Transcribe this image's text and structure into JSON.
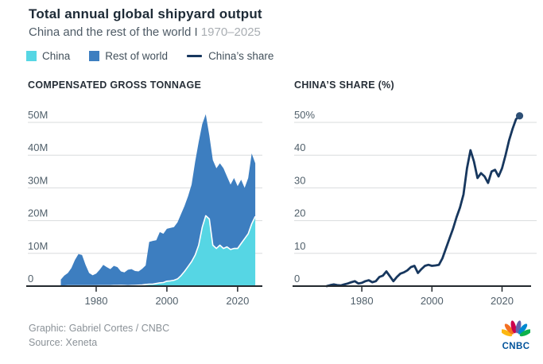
{
  "header": {
    "title": "Total annual global shipyard output",
    "subtitle": "China and the rest of the world I",
    "subtitle_range": "1970–2025"
  },
  "legend": {
    "china": "China",
    "rest_of_world": "Rest of world",
    "china_share": "China’s share"
  },
  "colors": {
    "china": "#56d6e4",
    "rest_of_world": "#3d7ec0",
    "share_line": "#17375e",
    "share_dot": "#2e5076",
    "grid": "#d9dcde",
    "axis": "#23292e",
    "axis_label": "#51606b",
    "cnbc_blue": "#00539b",
    "peacock": [
      "#fcb711",
      "#f37021",
      "#cc004c",
      "#6460aa",
      "#0089d0",
      "#0db14b"
    ]
  },
  "chart_data": [
    {
      "type": "area",
      "stacked": true,
      "title": "COMPENSATED GROSS TONNAGE",
      "unit": "million compensated gross tons",
      "ylim": [
        0,
        50
      ],
      "ytick_step": 10,
      "ytick_labels": [
        "0",
        "10M",
        "20M",
        "30M",
        "40M",
        "50M"
      ],
      "xticks": [
        1980,
        2000,
        2020
      ],
      "grid": true,
      "x": [
        1970,
        1971,
        1972,
        1973,
        1974,
        1975,
        1976,
        1977,
        1978,
        1979,
        1980,
        1981,
        1982,
        1983,
        1984,
        1985,
        1986,
        1987,
        1988,
        1989,
        1990,
        1991,
        1992,
        1993,
        1994,
        1995,
        1996,
        1997,
        1998,
        1999,
        2000,
        2001,
        2002,
        2003,
        2004,
        2005,
        2006,
        2007,
        2008,
        2009,
        2010,
        2011,
        2012,
        2013,
        2014,
        2015,
        2016,
        2017,
        2018,
        2019,
        2020,
        2021,
        2022,
        2023,
        2024,
        2025
      ],
      "series": [
        {
          "name": "China",
          "color": "#56d6e4",
          "values": [
            0.05,
            0.05,
            0.1,
            0.1,
            0.1,
            0.1,
            0.1,
            0.1,
            0.1,
            0.1,
            0.1,
            0.15,
            0.15,
            0.15,
            0.15,
            0.2,
            0.2,
            0.25,
            0.2,
            0.15,
            0.2,
            0.25,
            0.3,
            0.35,
            0.5,
            0.6,
            0.6,
            0.8,
            1.0,
            1.1,
            1.5,
            1.6,
            1.8,
            2.2,
            3.2,
            4.5,
            6.0,
            7.5,
            9.5,
            12.5,
            18.0,
            21.5,
            20.5,
            12.5,
            11.5,
            12.5,
            11.5,
            12.0,
            11.2,
            11.5,
            11.5,
            13.0,
            14.5,
            16.0,
            19.0,
            21.3
          ]
        },
        {
          "name": "Rest of world",
          "color": "#3d7ec0",
          "values": [
            1.95,
            3.15,
            3.9,
            5.4,
            7.9,
            9.7,
            9.4,
            6.4,
            3.9,
            3.2,
            3.7,
            4.85,
            6.35,
            5.65,
            5.05,
            6.0,
            5.6,
            4.25,
            4.0,
            4.85,
            5.0,
            4.35,
            4.2,
            4.95,
            5.8,
            12.9,
            13.2,
            13.2,
            15.5,
            14.9,
            16.0,
            16.2,
            16.2,
            17.3,
            18.8,
            20.0,
            21.5,
            23.5,
            28.5,
            31.5,
            31.5,
            31.0,
            25.5,
            26.0,
            24.5,
            25.0,
            24.5,
            21.5,
            19.8,
            21.5,
            19.0,
            19.5,
            15.5,
            17.0,
            21.5,
            16.2
          ]
        }
      ]
    },
    {
      "type": "line",
      "title": "CHINA’S SHARE (%)",
      "unit": "percent",
      "ylim": [
        0,
        50
      ],
      "ytick_step": 10,
      "ytick_labels": [
        "0",
        "10",
        "20",
        "30",
        "40",
        "50%"
      ],
      "xticks": [
        1980,
        2000,
        2020
      ],
      "grid": true,
      "end_dot": true,
      "x": [
        1970,
        1971,
        1972,
        1973,
        1974,
        1975,
        1976,
        1977,
        1978,
        1979,
        1980,
        1981,
        1982,
        1983,
        1984,
        1985,
        1986,
        1987,
        1988,
        1989,
        1990,
        1991,
        1992,
        1993,
        1994,
        1995,
        1996,
        1997,
        1998,
        1999,
        2000,
        2001,
        2002,
        2003,
        2004,
        2005,
        2006,
        2007,
        2008,
        2009,
        2010,
        2011,
        2012,
        2013,
        2014,
        2015,
        2016,
        2017,
        2018,
        2019,
        2020,
        2021,
        2022,
        2023,
        2024,
        2025
      ],
      "series": [
        {
          "name": "China’s share",
          "color": "#17375e",
          "values": [
            0,
            0.3,
            0.5,
            0.3,
            0.2,
            0.5,
            0.8,
            1.2,
            1.5,
            0.8,
            1.0,
            1.5,
            1.8,
            1.2,
            1.5,
            2.8,
            3.2,
            4.5,
            3.0,
            1.5,
            2.8,
            3.8,
            4.2,
            4.8,
            5.8,
            6.2,
            4.0,
            5.2,
            6.2,
            6.5,
            6.2,
            6.3,
            6.5,
            8.5,
            11.5,
            14.5,
            17.5,
            21.0,
            24.0,
            28.0,
            36.0,
            41.5,
            38.0,
            33.0,
            34.5,
            33.5,
            31.5,
            35.0,
            35.5,
            33.5,
            36.0,
            40.0,
            44.5,
            48.0,
            51.0,
            52.0
          ]
        }
      ]
    }
  ],
  "footer": {
    "graphic_credit": "Graphic: Gabriel Cortes / CNBC",
    "source": "Source: Xeneta",
    "logo_text": "CNBC"
  }
}
